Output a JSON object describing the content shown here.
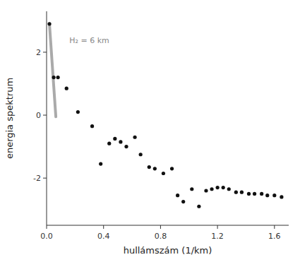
{
  "chart_data": {
    "type": "scatter",
    "title": "",
    "xlabel": "hullámszám (1/km)",
    "ylabel": "energia spektrum",
    "xlim": [
      0,
      1.7
    ],
    "ylim": [
      -3.5,
      3.3
    ],
    "xticks": [
      {
        "value": 0.0,
        "label": "0.0"
      },
      0.4,
      0.8,
      1.2,
      1.6
    ],
    "yticks": [
      -2,
      0,
      2
    ],
    "grid": false,
    "series": [
      {
        "type": "line",
        "color": "#aaaaaa",
        "x": [
          0.02,
          0.065
        ],
        "values": [
          2.9,
          -0.05
        ]
      },
      {
        "type": "scatter",
        "color": "#111111",
        "x": [
          0.02,
          0.05,
          0.08,
          0.14,
          0.22,
          0.32,
          0.38,
          0.44,
          0.48,
          0.52,
          0.56,
          0.62,
          0.66,
          0.72,
          0.76,
          0.82,
          0.88,
          0.92,
          0.96,
          1.02,
          1.07,
          1.12,
          1.16,
          1.2,
          1.24,
          1.28,
          1.33,
          1.37,
          1.42,
          1.46,
          1.51,
          1.55,
          1.6,
          1.65
        ],
        "values": [
          2.9,
          1.2,
          1.2,
          0.85,
          0.1,
          -0.35,
          -1.55,
          -0.9,
          -0.75,
          -0.85,
          -1.0,
          -0.7,
          -1.25,
          -1.65,
          -1.7,
          -1.85,
          -1.7,
          -2.55,
          -2.75,
          -2.35,
          -2.9,
          -2.4,
          -2.35,
          -2.3,
          -2.3,
          -2.35,
          -2.45,
          -2.45,
          -2.5,
          -2.5,
          -2.5,
          -2.55,
          -2.55,
          -2.6
        ]
      }
    ],
    "annotations": [
      {
        "text": "H₂ = 6 km",
        "x": 0.16,
        "y": 2.3,
        "color": "#888888"
      }
    ]
  }
}
